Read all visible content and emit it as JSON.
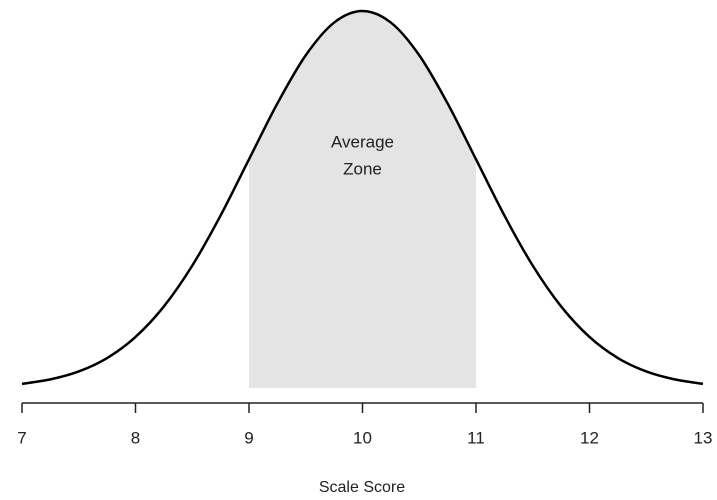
{
  "chart_data": {
    "type": "line",
    "x": [
      7,
      7.25,
      7.5,
      7.75,
      8,
      8.25,
      8.5,
      8.75,
      9,
      9.25,
      9.5,
      9.75,
      10,
      10.25,
      10.5,
      10.75,
      11,
      11.25,
      11.5,
      11.75,
      12,
      12.25,
      12.5,
      12.75,
      13
    ],
    "values": [
      0.0044,
      0.0091,
      0.0175,
      0.0317,
      0.054,
      0.0863,
      0.1295,
      0.1826,
      0.242,
      0.3011,
      0.3521,
      0.3867,
      0.3989,
      0.3867,
      0.3521,
      0.3011,
      0.242,
      0.1826,
      0.1295,
      0.0863,
      0.054,
      0.0317,
      0.0175,
      0.0091,
      0.0044
    ],
    "color": "#000000",
    "shade": [
      9,
      11
    ],
    "shade_color": "#e4e4e4",
    "annotation": [
      "Average",
      "Zone"
    ],
    "xlabel": "Scale Score",
    "xlim": [
      7,
      13
    ],
    "xticks": [
      7,
      8,
      9,
      10,
      11,
      12,
      13
    ],
    "ylim": [
      0,
      0.4
    ]
  }
}
